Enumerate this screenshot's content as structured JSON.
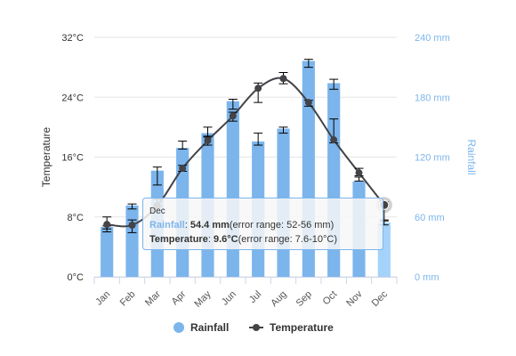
{
  "chart_data": {
    "type": "bar+line",
    "categories": [
      "Jan",
      "Feb",
      "Mar",
      "Apr",
      "May",
      "Jun",
      "Jul",
      "Aug",
      "Sep",
      "Oct",
      "Nov",
      "Dec"
    ],
    "series": [
      {
        "name": "Rainfall",
        "type": "bar",
        "axis": "right",
        "color": "#7cb5ec",
        "values": [
          49.9,
          71.5,
          106.4,
          129.2,
          144.0,
          176.0,
          135.6,
          148.5,
          216.4,
          194.1,
          95.6,
          54.4
        ],
        "error_low": [
          48,
          68,
          92,
          128,
          140,
          168,
          132,
          144,
          210,
          188,
          96,
          52
        ],
        "error_high": [
          51,
          73,
          110,
          136,
          150,
          178,
          144,
          150,
          218,
          198,
          100,
          56
        ]
      },
      {
        "name": "Temperature",
        "type": "line",
        "axis": "left",
        "color": "#434348",
        "values": [
          7.0,
          6.9,
          9.5,
          14.5,
          18.2,
          21.5,
          25.2,
          26.5,
          23.3,
          18.3,
          13.9,
          9.6
        ],
        "error_low": [
          6,
          5.9,
          9.4,
          14.1,
          17.6,
          20.8,
          23.3,
          25.8,
          22.8,
          17.9,
          13.5,
          7.6
        ],
        "error_high": [
          8,
          7.6,
          10.4,
          14.9,
          18.8,
          22.0,
          25.9,
          27.3,
          23.6,
          21.1,
          14.5,
          10.0
        ]
      }
    ],
    "y_left": {
      "label": "Temperature",
      "ticks": [
        "0°C",
        "8°C",
        "16°C",
        "24°C",
        "32°C"
      ],
      "range": [
        0,
        32
      ]
    },
    "y_right": {
      "label": "Rainfall",
      "ticks": [
        "0 mm",
        "60 mm",
        "120 mm",
        "180 mm",
        "240 mm"
      ],
      "range": [
        0,
        240
      ]
    },
    "grid": true,
    "legend_position": "bottom-center",
    "tooltip": {
      "category": "Dec",
      "rainfall_label": "Rainfall",
      "rainfall_value": "54.4 mm",
      "rainfall_range": "(error range: 52-56 mm)",
      "temperature_label": "Temperature",
      "temperature_value": "9.6°C",
      "temperature_range": "(error range: 7.6-10°C)"
    }
  }
}
